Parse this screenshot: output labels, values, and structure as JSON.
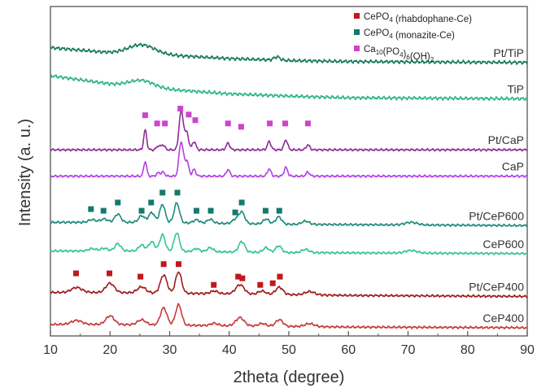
{
  "chart_data": {
    "type": "line",
    "xlabel": "2theta (degree)",
    "ylabel": "Intensity (a. u.)",
    "xlim": [
      10,
      90
    ],
    "xticks": [
      10,
      20,
      30,
      40,
      50,
      60,
      70,
      80,
      90
    ],
    "yticks": "none",
    "grid": false,
    "legend_position": "top-right",
    "legend": [
      {
        "name": "CePO4 (rhabdophane-Ce)",
        "parts": [
          [
            "CePO",
            ""
          ],
          [
            "4",
            "sub"
          ],
          [
            " (rhabdophane-Ce)",
            ""
          ]
        ],
        "marker": "square",
        "color": "#c0181c"
      },
      {
        "name": "CePO4 (monazite-Ce)",
        "parts": [
          [
            "CePO",
            ""
          ],
          [
            "4",
            "sub"
          ],
          [
            " (monazite-Ce)",
            ""
          ]
        ],
        "marker": "square",
        "color": "#137a6c"
      },
      {
        "name": "Ca10(PO4)6(OH)2",
        "parts": [
          [
            "Ca",
            ""
          ],
          [
            "10",
            "sub"
          ],
          [
            "(PO",
            ""
          ],
          [
            "4",
            "sub"
          ],
          [
            ")",
            ""
          ],
          [
            "6",
            "sub"
          ],
          [
            "(OH)",
            ""
          ],
          [
            "2",
            "sub"
          ]
        ],
        "marker": "square",
        "color": "#cc44cc"
      }
    ],
    "series": [
      {
        "name": "Pt/TiP",
        "color": "#157a5c",
        "base": 0.83,
        "noise": 0.006,
        "background": [
          [
            10,
            0.045
          ],
          [
            20,
            0.03
          ],
          [
            30,
            0.022
          ],
          [
            40,
            0.012
          ],
          [
            50,
            0.006
          ],
          [
            60,
            0.003
          ],
          [
            90,
            0.0
          ]
        ],
        "peaks": [
          [
            25.3,
            0.028,
            2.2
          ],
          [
            48.0,
            0.01,
            0.5
          ]
        ]
      },
      {
        "name": "TiP",
        "color": "#2db585",
        "base": 0.72,
        "noise": 0.006,
        "background": [
          [
            10,
            0.07
          ],
          [
            20,
            0.045
          ],
          [
            30,
            0.028
          ],
          [
            40,
            0.015
          ],
          [
            50,
            0.008
          ],
          [
            60,
            0.003
          ],
          [
            90,
            0.0
          ]
        ],
        "peaks": [
          [
            25.3,
            0.02,
            2.0
          ]
        ]
      },
      {
        "name": "Pt/CaP",
        "color": "#8e2d95",
        "base": 0.565,
        "noise": 0.004,
        "background": [
          [
            10,
            0.0
          ],
          [
            90,
            0.0
          ]
        ],
        "peaks": [
          [
            25.9,
            0.06,
            0.25
          ],
          [
            28.1,
            0.012,
            0.3
          ],
          [
            28.9,
            0.015,
            0.3
          ],
          [
            31.8,
            0.085,
            0.3
          ],
          [
            32.2,
            0.06,
            0.3
          ],
          [
            32.9,
            0.05,
            0.3
          ],
          [
            34.1,
            0.025,
            0.3
          ],
          [
            39.8,
            0.02,
            0.3
          ],
          [
            46.7,
            0.025,
            0.3
          ],
          [
            49.5,
            0.03,
            0.3
          ],
          [
            53.2,
            0.015,
            0.3
          ]
        ]
      },
      {
        "name": "CaP",
        "color": "#b540e6",
        "base": 0.485,
        "noise": 0.004,
        "background": [
          [
            10,
            0.0
          ],
          [
            90,
            0.0
          ]
        ],
        "peaks": [
          [
            25.9,
            0.045,
            0.25
          ],
          [
            28.1,
            0.01,
            0.3
          ],
          [
            28.9,
            0.012,
            0.3
          ],
          [
            31.8,
            0.078,
            0.3
          ],
          [
            32.2,
            0.05,
            0.3
          ],
          [
            32.9,
            0.045,
            0.3
          ],
          [
            34.1,
            0.02,
            0.3
          ],
          [
            39.8,
            0.02,
            0.3
          ],
          [
            46.7,
            0.022,
            0.3
          ],
          [
            49.5,
            0.026,
            0.3
          ],
          [
            53.2,
            0.012,
            0.3
          ]
        ]
      },
      {
        "name": "Pt/CeP600",
        "color": "#1e8a7a",
        "base": 0.335,
        "noise": 0.004,
        "background": [
          [
            10,
            0.01
          ],
          [
            25,
            0.01
          ],
          [
            50,
            0.004
          ],
          [
            90,
            0.0
          ]
        ],
        "peaks": [
          [
            17.0,
            0.008,
            0.6
          ],
          [
            19.0,
            0.01,
            0.6
          ],
          [
            21.3,
            0.025,
            0.5
          ],
          [
            25.3,
            0.02,
            0.5
          ],
          [
            27.0,
            0.03,
            0.5
          ],
          [
            28.8,
            0.055,
            0.45
          ],
          [
            31.2,
            0.06,
            0.45
          ],
          [
            34.5,
            0.01,
            0.5
          ],
          [
            36.8,
            0.012,
            0.5
          ],
          [
            41.0,
            0.012,
            0.5
          ],
          [
            42.1,
            0.035,
            0.5
          ],
          [
            46.2,
            0.015,
            0.5
          ],
          [
            48.3,
            0.022,
            0.5
          ],
          [
            52.8,
            0.01,
            0.6
          ],
          [
            70.5,
            0.008,
            1.0
          ]
        ]
      },
      {
        "name": "CeP600",
        "color": "#36c29a",
        "base": 0.25,
        "noise": 0.004,
        "background": [
          [
            10,
            0.008
          ],
          [
            25,
            0.008
          ],
          [
            50,
            0.003
          ],
          [
            90,
            0.0
          ]
        ],
        "peaks": [
          [
            17.0,
            0.007,
            0.6
          ],
          [
            19.0,
            0.008,
            0.6
          ],
          [
            21.3,
            0.022,
            0.5
          ],
          [
            25.3,
            0.018,
            0.5
          ],
          [
            27.0,
            0.028,
            0.5
          ],
          [
            28.8,
            0.05,
            0.45
          ],
          [
            31.2,
            0.056,
            0.45
          ],
          [
            34.5,
            0.009,
            0.5
          ],
          [
            36.8,
            0.012,
            0.5
          ],
          [
            42.1,
            0.032,
            0.5
          ],
          [
            46.2,
            0.014,
            0.5
          ],
          [
            48.3,
            0.02,
            0.5
          ],
          [
            52.8,
            0.01,
            0.6
          ],
          [
            70.5,
            0.008,
            1.0
          ]
        ]
      },
      {
        "name": "Pt/CeP400",
        "color": "#9c1c1c",
        "base": 0.12,
        "noise": 0.004,
        "background": [
          [
            10,
            0.012
          ],
          [
            20,
            0.012
          ],
          [
            40,
            0.008
          ],
          [
            60,
            0.003
          ],
          [
            90,
            0.0
          ]
        ],
        "peaks": [
          [
            14.4,
            0.015,
            0.9
          ],
          [
            20.0,
            0.028,
            0.7
          ],
          [
            25.3,
            0.018,
            0.7
          ],
          [
            29.0,
            0.055,
            0.55
          ],
          [
            31.5,
            0.065,
            0.5
          ],
          [
            37.5,
            0.008,
            0.6
          ],
          [
            41.8,
            0.028,
            0.7
          ],
          [
            45.5,
            0.01,
            0.6
          ],
          [
            48.4,
            0.022,
            0.6
          ],
          [
            53.5,
            0.01,
            0.8
          ]
        ]
      },
      {
        "name": "CeP400",
        "color": "#c43a3a",
        "base": 0.025,
        "noise": 0.004,
        "background": [
          [
            10,
            0.01
          ],
          [
            20,
            0.01
          ],
          [
            40,
            0.006
          ],
          [
            60,
            0.002
          ],
          [
            90,
            0.0
          ]
        ],
        "peaks": [
          [
            14.4,
            0.012,
            0.9
          ],
          [
            20.0,
            0.026,
            0.7
          ],
          [
            25.3,
            0.015,
            0.7
          ],
          [
            29.0,
            0.052,
            0.55
          ],
          [
            31.5,
            0.062,
            0.5
          ],
          [
            37.5,
            0.007,
            0.6
          ],
          [
            41.8,
            0.025,
            0.7
          ],
          [
            45.5,
            0.008,
            0.6
          ],
          [
            48.4,
            0.02,
            0.6
          ],
          [
            53.5,
            0.009,
            0.8
          ]
        ]
      }
    ],
    "markers": [
      {
        "phase": "Ca10(PO4)6(OH)2",
        "color": "#cc44cc",
        "level": 0.67,
        "positions": [
          [
            25.9,
            0.67
          ],
          [
            27.9,
            0.645
          ],
          [
            29.2,
            0.645
          ],
          [
            31.8,
            0.69
          ],
          [
            33.2,
            0.672
          ],
          [
            34.3,
            0.655
          ],
          [
            39.8,
            0.645
          ],
          [
            42.0,
            0.635
          ],
          [
            46.8,
            0.645
          ],
          [
            49.4,
            0.645
          ],
          [
            53.2,
            0.645
          ]
        ]
      },
      {
        "phase": "CePO4 (monazite-Ce)",
        "color": "#137a6c",
        "level": 0.4,
        "positions": [
          [
            16.8,
            0.385
          ],
          [
            18.9,
            0.38
          ],
          [
            21.3,
            0.405
          ],
          [
            25.3,
            0.38
          ],
          [
            26.9,
            0.405
          ],
          [
            28.8,
            0.435
          ],
          [
            31.3,
            0.435
          ],
          [
            34.5,
            0.38
          ],
          [
            36.9,
            0.38
          ],
          [
            41.0,
            0.375
          ],
          [
            42.1,
            0.405
          ],
          [
            46.1,
            0.38
          ],
          [
            48.4,
            0.38
          ]
        ]
      },
      {
        "phase": "CePO4 (rhabdophane-Ce)",
        "color": "#c0181c",
        "level": 0.2,
        "positions": [
          [
            14.3,
            0.19
          ],
          [
            19.9,
            0.19
          ],
          [
            25.1,
            0.18
          ],
          [
            29.0,
            0.218
          ],
          [
            31.5,
            0.218
          ],
          [
            37.4,
            0.155
          ],
          [
            41.5,
            0.18
          ],
          [
            42.2,
            0.175
          ],
          [
            45.2,
            0.155
          ],
          [
            47.3,
            0.16
          ],
          [
            48.5,
            0.18
          ]
        ]
      }
    ]
  }
}
